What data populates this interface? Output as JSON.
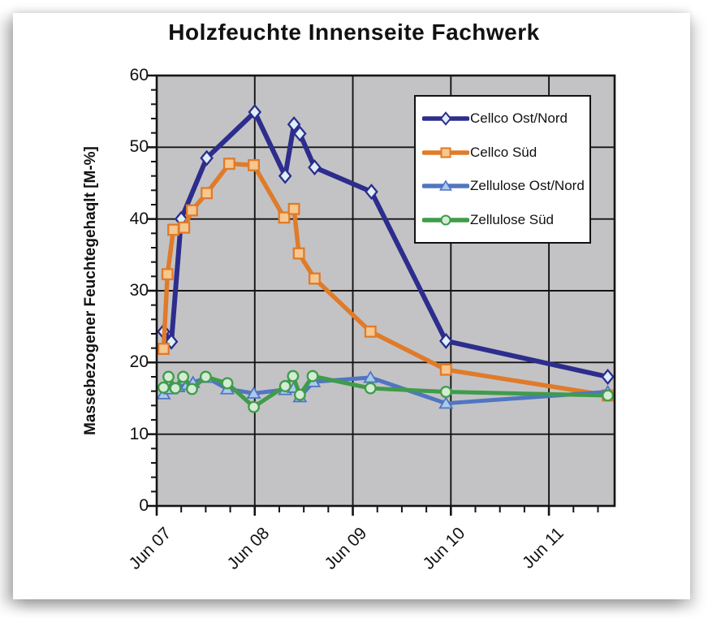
{
  "page": {
    "background_color": "#ffffff",
    "card_shadow": "soft gray drop shadow around white scanned page"
  },
  "chart_data": {
    "type": "line",
    "title": "Holzfeuchte Innenseite Fachwerk",
    "ylabel": "Massebezogener Feuchtegehaqlt [M-%]",
    "xlabel": "",
    "ylim": [
      0,
      60
    ],
    "xlim": [
      0,
      4.67
    ],
    "y_major_ticks": [
      0,
      10,
      20,
      30,
      40,
      50,
      60
    ],
    "y_minor_step": 2,
    "x_minor_step": 0.25,
    "x_ticks": [
      {
        "t": 0,
        "label": "Jun 07"
      },
      {
        "t": 1,
        "label": "Jun 08"
      },
      {
        "t": 2,
        "label": "Jun 09"
      },
      {
        "t": 3,
        "label": "Jun 10"
      },
      {
        "t": 4,
        "label": "Jun 11"
      }
    ],
    "grid": "major gridlines on, black, on gray plot background",
    "plot_bg_color": "#c3c3c6",
    "grid_color": "#141414",
    "legend_position": "inside upper right, white box with black border",
    "series": [
      {
        "name": "Cellco Ost/Nord",
        "color": "#2d2d8d",
        "marker": "diamond",
        "marker_fill": "#ddeff8",
        "points": [
          [
            0.07,
            24.3
          ],
          [
            0.15,
            22.9
          ],
          [
            0.25,
            40.0
          ],
          [
            0.51,
            48.5
          ],
          [
            1.0,
            54.9
          ],
          [
            1.31,
            46.0
          ],
          [
            1.4,
            53.2
          ],
          [
            1.46,
            51.9
          ],
          [
            1.61,
            47.2
          ],
          [
            2.19,
            43.8
          ],
          [
            2.95,
            23.0
          ],
          [
            4.6,
            18.0
          ]
        ]
      },
      {
        "name": "Cellco Süd",
        "color": "#e07b29",
        "marker": "square",
        "marker_fill": "#f6c78f",
        "points": [
          [
            0.07,
            21.9
          ],
          [
            0.11,
            32.3
          ],
          [
            0.17,
            38.5
          ],
          [
            0.28,
            38.8
          ],
          [
            0.36,
            41.2
          ],
          [
            0.51,
            43.6
          ],
          [
            0.74,
            47.7
          ],
          [
            0.99,
            47.5
          ],
          [
            1.3,
            40.2
          ],
          [
            1.4,
            41.4
          ],
          [
            1.45,
            35.2
          ],
          [
            1.61,
            31.7
          ],
          [
            2.18,
            24.3
          ],
          [
            2.95,
            19.0
          ],
          [
            4.6,
            15.4
          ]
        ]
      },
      {
        "name": "Zellulose Ost/Nord",
        "color": "#5175c2",
        "marker": "triangle",
        "marker_fill": "#aacae9",
        "points": [
          [
            0.07,
            15.6
          ],
          [
            0.14,
            16.3
          ],
          [
            0.22,
            16.6
          ],
          [
            0.31,
            16.9
          ],
          [
            0.37,
            17.2
          ],
          [
            0.51,
            17.9
          ],
          [
            0.72,
            16.3
          ],
          [
            0.99,
            15.7
          ],
          [
            1.31,
            16.2
          ],
          [
            1.4,
            16.5
          ],
          [
            1.46,
            15.2
          ],
          [
            1.6,
            17.3
          ],
          [
            2.18,
            17.9
          ],
          [
            2.95,
            14.3
          ],
          [
            4.6,
            15.9
          ]
        ]
      },
      {
        "name": "Zellulose Süd",
        "color": "#3f9c4a",
        "marker": "circle",
        "marker_fill": "#d3ecd3",
        "points": [
          [
            0.07,
            16.5
          ],
          [
            0.12,
            18.0
          ],
          [
            0.19,
            16.4
          ],
          [
            0.27,
            18.0
          ],
          [
            0.36,
            16.3
          ],
          [
            0.5,
            18.0
          ],
          [
            0.72,
            17.1
          ],
          [
            0.99,
            13.8
          ],
          [
            1.31,
            16.7
          ],
          [
            1.39,
            18.1
          ],
          [
            1.46,
            15.5
          ],
          [
            1.59,
            18.1
          ],
          [
            2.18,
            16.4
          ],
          [
            2.95,
            15.9
          ],
          [
            4.6,
            15.4
          ]
        ]
      }
    ]
  }
}
